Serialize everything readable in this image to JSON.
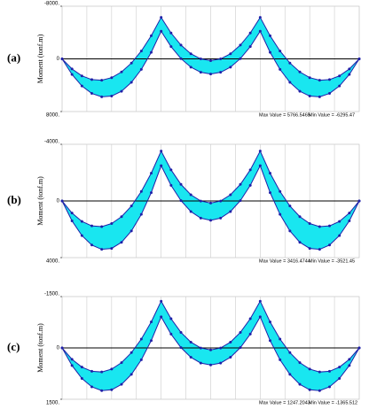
{
  "chart_data": [
    {
      "type": "line",
      "label": "(a)",
      "ylabel": "Moment (tonf.m)",
      "annotations": [
        "Max Value = 5766.5465",
        "Min Value = -6295.47"
      ],
      "ylim": [
        -8000,
        8000
      ],
      "y_inverted": true,
      "fill_between": true,
      "fill_color": "#19e6f0",
      "yticks": [
        {
          "value": -8000,
          "label": "-8000."
        },
        0,
        {
          "value": 8000,
          "label": "8000."
        }
      ],
      "series": [
        {
          "color": "#2020a8",
          "values": [
            0,
            2370,
            4120,
            5250,
            5760,
            5650,
            4920,
            3570,
            1600,
            -990,
            -4200,
            -1860,
            -40,
            1260,
            2040,
            2300,
            2040,
            1260,
            -40,
            -1860,
            -4200,
            -990,
            1600,
            3570,
            4920,
            5650,
            5760,
            5250,
            4120,
            2370,
            0
          ]
        },
        {
          "color": "#2020a8",
          "values": [
            0,
            1530,
            2581,
            3151,
            3242,
            2852,
            1983,
            633,
            -1196,
            -3506,
            -6295,
            -3932,
            -2093,
            -780,
            7,
            270,
            7,
            -780,
            -2093,
            -3932,
            -6295,
            -3506,
            -1196,
            633,
            1983,
            2852,
            3242,
            3151,
            2581,
            1530,
            0
          ]
        }
      ]
    },
    {
      "type": "line",
      "label": "(b)",
      "ylabel": "Moment (tonf.m)",
      "annotations": [
        "Max Value = 3416.4744",
        "Min Value = -3521.45"
      ],
      "ylim": [
        -4000,
        4000
      ],
      "y_inverted": true,
      "fill_between": true,
      "fill_color": "#19e6f0",
      "yticks": [
        {
          "value": -4000,
          "label": "-4000."
        },
        0,
        {
          "value": 4000,
          "label": "4000."
        }
      ],
      "series": [
        {
          "color": "#2020a8",
          "values": [
            0,
            1405,
            2443,
            3113,
            3416,
            3350,
            2918,
            2117,
            949,
            -587,
            -2491,
            -1103,
            -24,
            747,
            1210,
            1364,
            1210,
            747,
            -24,
            -1103,
            -2491,
            -587,
            949,
            2117,
            2918,
            3350,
            3416,
            3113,
            2443,
            1405,
            0
          ]
        },
        {
          "color": "#2020a8",
          "values": [
            0,
            855,
            1443,
            1761,
            1812,
            1594,
            1109,
            354,
            -669,
            -1960,
            -3521,
            -2198,
            -1170,
            -436,
            4,
            151,
            4,
            -436,
            -1170,
            -2198,
            -3521,
            -1960,
            -669,
            354,
            1109,
            1594,
            1812,
            1761,
            1443,
            855,
            0
          ]
        }
      ]
    },
    {
      "type": "line",
      "label": "(c)",
      "ylabel": "Moment (tonf.m)",
      "annotations": [
        "Max Value = 1247.2043",
        "Min Value = -1365.512"
      ],
      "ylim": [
        -1500,
        1500
      ],
      "y_inverted": true,
      "fill_between": true,
      "fill_color": "#19e6f0",
      "yticks": [
        {
          "value": -1500,
          "label": "-1500."
        },
        0,
        {
          "value": 1500,
          "label": "1500."
        }
      ],
      "series": [
        {
          "color": "#2020a8",
          "values": [
            0,
            513,
            892,
            1137,
            1247,
            1223,
            1065,
            773,
            346,
            -214,
            -909,
            -403,
            -9,
            273,
            442,
            498,
            442,
            273,
            -9,
            -403,
            -909,
            -214,
            346,
            773,
            1065,
            1223,
            1247,
            1137,
            892,
            513,
            0
          ]
        },
        {
          "color": "#2020a8",
          "values": [
            0,
            332,
            560,
            683,
            703,
            619,
            430,
            137,
            -259,
            -760,
            -1365,
            -853,
            -454,
            -169,
            2,
            59,
            2,
            -169,
            -454,
            -853,
            -1365,
            -760,
            -259,
            137,
            430,
            619,
            703,
            683,
            560,
            332,
            0
          ]
        }
      ]
    }
  ]
}
